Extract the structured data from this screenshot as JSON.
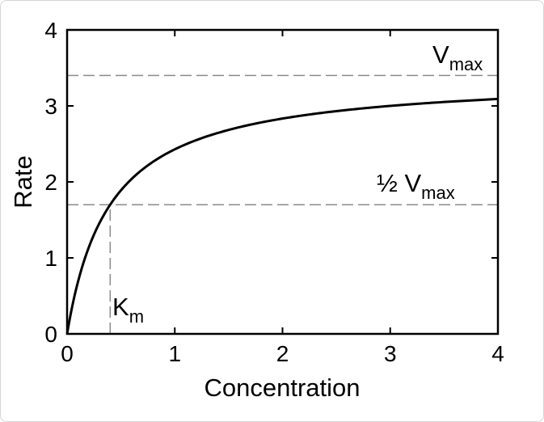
{
  "chart_data": {
    "type": "line",
    "title": "",
    "xlabel": "Concentration",
    "ylabel": "Rate",
    "xlim": [
      0,
      4
    ],
    "ylim": [
      0,
      4
    ],
    "x_ticks": [
      "0",
      "1",
      "2",
      "3",
      "4"
    ],
    "y_ticks": [
      "0",
      "1",
      "2",
      "3",
      "4"
    ],
    "grid": false,
    "legend": "none",
    "series": [
      {
        "color": "#000000",
        "x": [
          0,
          0.05,
          0.1,
          0.2,
          0.3,
          0.4,
          0.5,
          0.75,
          1.0,
          1.5,
          2.0,
          2.5,
          3.0,
          3.5,
          4.0
        ],
        "y": [
          0,
          0.378,
          0.68,
          1.133,
          1.457,
          1.7,
          1.889,
          2.215,
          2.429,
          2.684,
          2.833,
          2.931,
          3.0,
          3.051,
          3.091
        ]
      }
    ],
    "reference_lines": [
      {
        "kind": "horizontal",
        "y": 3.4,
        "style": "dashed",
        "color": "#8a8a8a",
        "x_from": 0,
        "x_to": 4
      },
      {
        "kind": "horizontal",
        "y": 1.7,
        "style": "dashed",
        "color": "#8a8a8a",
        "x_from": 0,
        "x_to": 4
      },
      {
        "kind": "vertical",
        "x": 0.4,
        "style": "dashed",
        "color": "#8a8a8a",
        "y_from": 0,
        "y_to": 1.7
      }
    ],
    "annotations": {
      "vmax": {
        "main": "V",
        "sub": "max"
      },
      "half_vmax": {
        "main": "½ V",
        "sub": "max"
      },
      "km": {
        "main": "K",
        "sub": "m"
      }
    }
  }
}
